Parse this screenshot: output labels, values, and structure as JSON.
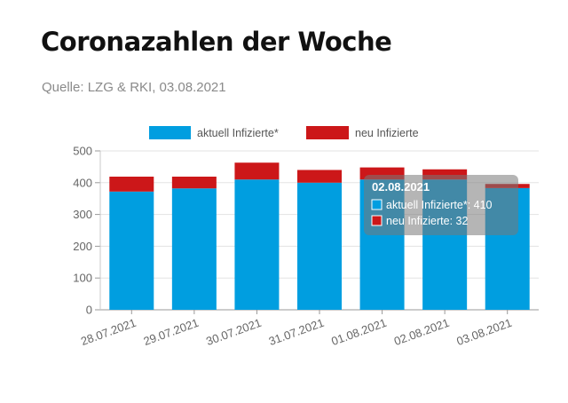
{
  "header": {
    "title": "Coronazahlen der Woche",
    "source": "Quelle: LZG & RKI, 03.08.2021"
  },
  "colors": {
    "current": "#009ee0",
    "new": "#cc1719",
    "tooltip_bg": "rgba(120,120,120,0.55)"
  },
  "chart_data": {
    "type": "bar",
    "stacked": true,
    "categories": [
      "28.07.2021",
      "29.07.2021",
      "30.07.2021",
      "31.07.2021",
      "01.08.2021",
      "02.08.2021",
      "03.08.2021"
    ],
    "series": [
      {
        "name": "aktuell Infizierte*",
        "values": [
          372,
          382,
          410,
          400,
          410,
          410,
          383
        ]
      },
      {
        "name": "neu Infizierte",
        "values": [
          47,
          37,
          53,
          40,
          38,
          32,
          13
        ]
      }
    ],
    "ylim": [
      0,
      500
    ],
    "yticks": [
      0,
      100,
      200,
      300,
      400,
      500
    ],
    "grid": true,
    "legend": "top-center",
    "tooltip": {
      "title": "02.08.2021",
      "lines": [
        "aktuell Infizierte*: 410",
        "neu Infizierte: 32"
      ]
    }
  }
}
